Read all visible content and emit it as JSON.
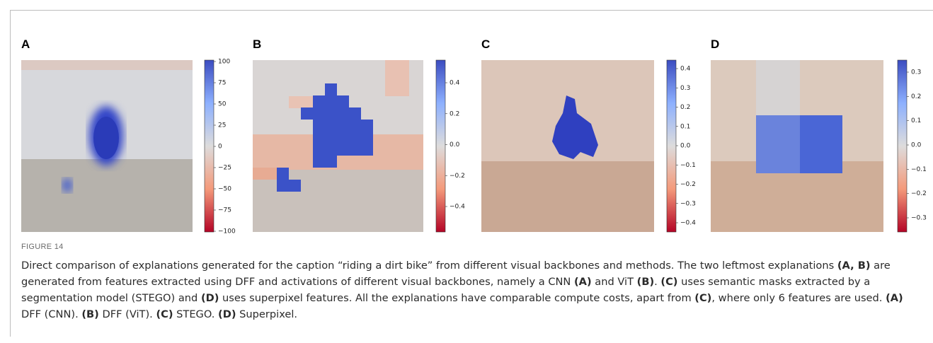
{
  "panels": [
    {
      "label": "A",
      "colorbar_ticks": [
        "100",
        "75",
        "50",
        "25",
        "0",
        "−25",
        "−50",
        "−75",
        "−100"
      ]
    },
    {
      "label": "B",
      "colorbar_ticks": [
        "0.4",
        "0.2",
        "0.0",
        "−0.2",
        "−0.4"
      ]
    },
    {
      "label": "C",
      "colorbar_ticks": [
        "0.4",
        "0.3",
        "0.2",
        "0.1",
        "0.0",
        "−0.1",
        "−0.2",
        "−0.3",
        "−0.4"
      ]
    },
    {
      "label": "D",
      "colorbar_ticks": [
        "0.3",
        "0.2",
        "0.1",
        "0.0",
        "−0.1",
        "−0.2",
        "−0.3"
      ]
    }
  ],
  "figure_label": "FIGURE 14",
  "caption": [
    {
      "text": "Direct comparison of explanations generated for the caption “riding a dirt bike” from different visual backbones and methods. The two leftmost explanations "
    },
    {
      "text": "(A, B)",
      "bold": true
    },
    {
      "text": " are generated from features extracted using DFF and activations of different visual backbones, namely a CNN "
    },
    {
      "text": "(A)",
      "bold": true
    },
    {
      "text": " and ViT "
    },
    {
      "text": "(B)",
      "bold": true
    },
    {
      "text": ". "
    },
    {
      "text": "(C)",
      "bold": true
    },
    {
      "text": " uses semantic masks extracted by a segmentation model (STEGO) and "
    },
    {
      "text": "(D)",
      "bold": true
    },
    {
      "text": " uses superpixel features. All the explanations have comparable compute costs, apart from "
    },
    {
      "text": "(C)",
      "bold": true
    },
    {
      "text": ", where only 6 features are used. "
    },
    {
      "text": "(A)",
      "bold": true
    },
    {
      "text": " DFF (CNN). "
    },
    {
      "text": "(B)",
      "bold": true
    },
    {
      "text": " DFF (ViT). "
    },
    {
      "text": "(C)",
      "bold": true
    },
    {
      "text": " STEGO. "
    },
    {
      "text": "(D)",
      "bold": true
    },
    {
      "text": " Superpixel."
    }
  ]
}
